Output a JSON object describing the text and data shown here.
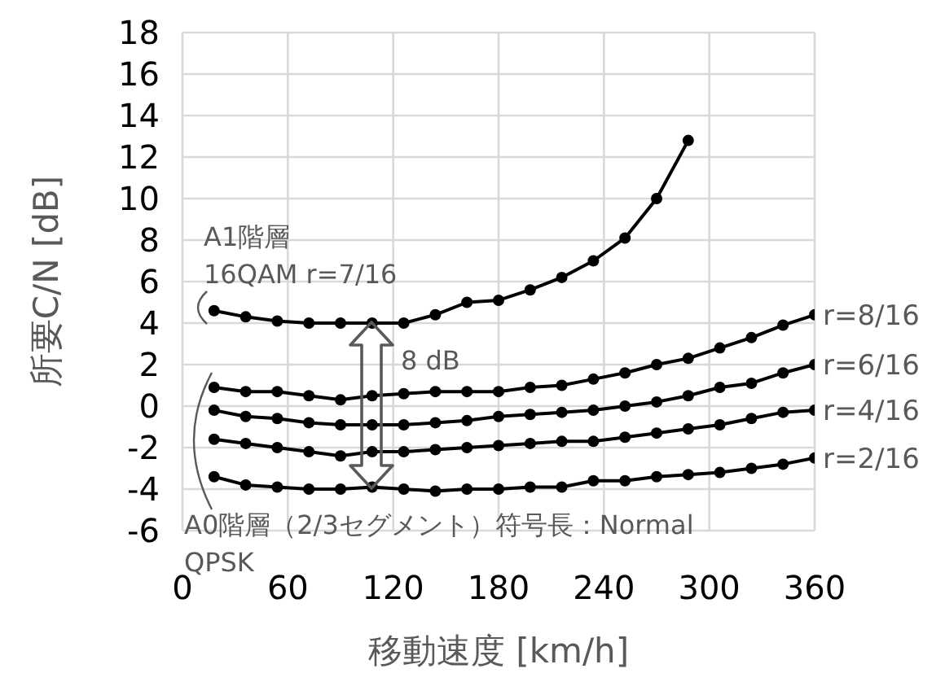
{
  "chart_data": {
    "type": "line",
    "xlabel": "移動速度 [km/h]",
    "ylabel": "所要C/N [dB]",
    "x": [
      18,
      36,
      54,
      72,
      90,
      108,
      126,
      144,
      162,
      180,
      198,
      216,
      234,
      252,
      270,
      288,
      306,
      324,
      342,
      360
    ],
    "series": [
      {
        "color": "#000000",
        "x": [
          18,
          36,
          54,
          72,
          90,
          108,
          126,
          144,
          162,
          180,
          198,
          216,
          234,
          252,
          270,
          288
        ],
        "values": [
          4.6,
          4.3,
          4.1,
          4.0,
          4.0,
          4.0,
          4.0,
          4.4,
          5.0,
          5.1,
          5.6,
          6.2,
          7.0,
          8.1,
          10.0,
          12.8
        ]
      },
      {
        "name": "r=8/16",
        "color": "#000000",
        "values": [
          0.9,
          0.7,
          0.7,
          0.5,
          0.3,
          0.5,
          0.6,
          0.7,
          0.7,
          0.7,
          0.9,
          1.0,
          1.3,
          1.6,
          2.0,
          2.3,
          2.8,
          3.3,
          3.9,
          4.4
        ]
      },
      {
        "name": "r=6/16",
        "color": "#000000",
        "values": [
          -0.2,
          -0.5,
          -0.6,
          -0.8,
          -0.9,
          -0.9,
          -0.9,
          -0.8,
          -0.7,
          -0.5,
          -0.4,
          -0.3,
          -0.2,
          0.0,
          0.2,
          0.5,
          0.9,
          1.1,
          1.6,
          2.0
        ]
      },
      {
        "name": "r=4/16",
        "color": "#000000",
        "values": [
          -1.6,
          -1.8,
          -2.0,
          -2.2,
          -2.4,
          -2.2,
          -2.2,
          -2.1,
          -2.0,
          -1.9,
          -1.8,
          -1.7,
          -1.7,
          -1.5,
          -1.3,
          -1.1,
          -0.9,
          -0.6,
          -0.3,
          -0.2
        ]
      },
      {
        "name": "r=2/16",
        "color": "#000000",
        "values": [
          -3.4,
          -3.8,
          -3.9,
          -4.0,
          -4.0,
          -3.9,
          -4.0,
          -4.1,
          -4.0,
          -4.0,
          -3.9,
          -3.9,
          -3.6,
          -3.6,
          -3.4,
          -3.3,
          -3.2,
          -3.0,
          -2.8,
          -2.5
        ]
      }
    ],
    "xlim": [
      0,
      360
    ],
    "xticks": [
      0,
      60,
      120,
      180,
      240,
      300,
      360
    ],
    "ylim": [
      -6,
      18
    ],
    "yticks": [
      -6,
      -4,
      -2,
      0,
      2,
      4,
      6,
      8,
      10,
      12,
      14,
      16,
      18
    ],
    "grid": true,
    "marker": "circle",
    "line_style": "solid",
    "annotations": [
      "A1階層",
      "16QAM r=7/16",
      "A0階層（2/3セグメント）符号長：Normal",
      "QPSK",
      "8 dB"
    ]
  }
}
